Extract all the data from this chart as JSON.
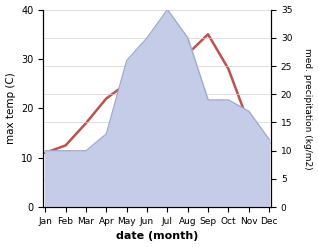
{
  "months": [
    "Jan",
    "Feb",
    "Mar",
    "Apr",
    "May",
    "Jun",
    "Jul",
    "Aug",
    "Sep",
    "Oct",
    "Nov",
    "Dec"
  ],
  "temperature": [
    11,
    12.5,
    17,
    22,
    25,
    30,
    29,
    31,
    35,
    28,
    17,
    13
  ],
  "precipitation": [
    10,
    10,
    10,
    13,
    26,
    30,
    35,
    30,
    19,
    19,
    17,
    12
  ],
  "temp_color": "#c0504d",
  "precip_fill_color": "#c5cce8",
  "precip_line_color": "#9aa8d0",
  "ylabel_left": "max temp (C)",
  "ylabel_right": "med. precipitation (kg/m2)",
  "xlabel": "date (month)",
  "ylim_left": [
    0,
    40
  ],
  "ylim_right": [
    0,
    35
  ],
  "bg_color": "#ffffff",
  "grid_color": "#d0d0d0",
  "temp_linewidth": 1.8,
  "precip_linewidth": 0.8
}
